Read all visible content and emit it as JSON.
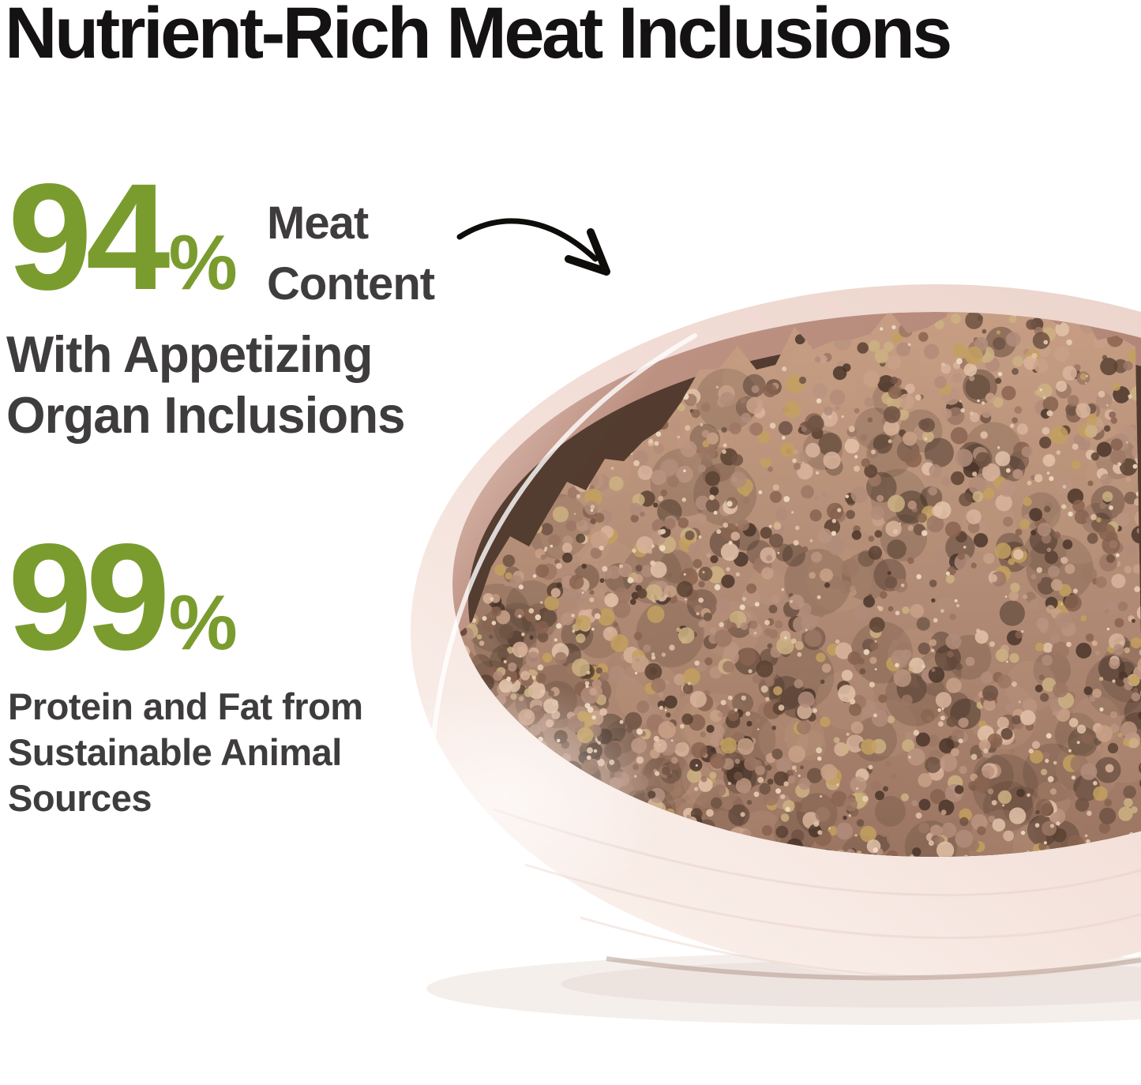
{
  "headline": {
    "text": "Nutrient-Rich Meat Inclusions"
  },
  "stat_meat": {
    "value": "94",
    "percent_sign": "%",
    "label_line1": "Meat",
    "label_line2": "Content"
  },
  "subheading": {
    "line1": "With Appetizing",
    "line2": "Organ Inclusions"
  },
  "stat_protein": {
    "value": "99",
    "percent_sign": "%"
  },
  "paragraph": {
    "line1": "Protein and Fat from",
    "line2": "Sustainable Animal",
    "line3": "Sources"
  },
  "colors": {
    "accent_green": "#7a9c2e",
    "body_gray": "#3e3c3d",
    "headline_black": "#141213",
    "arrow_black": "#0f0d0a",
    "background": "#ffffff"
  },
  "illustration": {
    "bowl": {
      "rim_light": "#fdf5f1",
      "rim_mid": "#f3e0d9",
      "rim_deep": "#e9d0c7",
      "wall_light": "#ecd6cd",
      "wall_mid": "#bd9182",
      "wall_deep": "#a97e6f",
      "cavity_shadow": "#4a3528",
      "ridge": "#e8d2ca",
      "rim_highlight": "#ffffff",
      "ground_shadow": "#ece1dc",
      "base_edge": "#b59a90"
    },
    "meat": {
      "base_top": "#c9a085",
      "base_mid": "#b08a74",
      "base_bottom": "#96705d",
      "palette": [
        "#b28c7a",
        "#b28c7a",
        "#bb9480",
        "#c9a188",
        "#d9b49c",
        "#e3c3a9",
        "#9c7764",
        "#9c7764",
        "#8a6450",
        "#86614f",
        "#6e5243",
        "#5a4233",
        "#4a352a",
        "#c3a05f",
        "#cdb282"
      ],
      "highlights": [
        "#e8cdb2",
        "#efdcc4",
        "#dfc0a4"
      ],
      "shadow_blob": "#3f2d23"
    }
  }
}
